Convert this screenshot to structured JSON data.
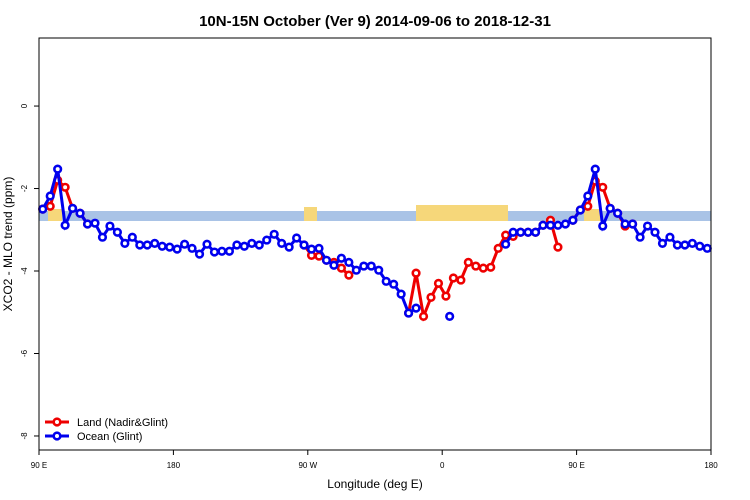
{
  "chart_data": {
    "type": "line",
    "title": "10N-15N October (Ver 9)   2014-09-06 to 2018-12-31",
    "x_label": "Longitude (deg E)",
    "y_label": "XCO2 - MLO trend (ppm)",
    "xlim": [
      90,
      540
    ],
    "ylim": [
      -8.34,
      1.65
    ],
    "xticks": [
      {
        "value": 90,
        "label": "90 E"
      },
      {
        "value": 180,
        "label": "180"
      },
      {
        "value": 270,
        "label": "90 W"
      },
      {
        "value": 360,
        "label": "0"
      },
      {
        "value": 450,
        "label": "90 E"
      },
      {
        "value": 540,
        "label": "180"
      }
    ],
    "yticks": [
      0,
      -2,
      -4,
      -6,
      -8
    ],
    "legend": "bottom-left",
    "series": [
      {
        "name": "Land (Nadir&Glint)",
        "color": "#ee0000",
        "x": [
          92.5,
          97.5,
          102.5,
          107.5,
          112.5,
          117.5,
          122.5,
          125,
          267.5,
          272.5,
          277.5,
          282.5,
          287.5,
          292.5,
          297.5,
          300,
          337.5,
          342.5,
          347.5,
          352.5,
          357.5,
          362.5,
          367.5,
          372.5,
          377.5,
          382.5,
          387.5,
          392.5,
          397.5,
          402.5,
          407.5,
          412.5,
          417.5,
          422.5,
          427.5,
          432.5,
          437.5,
          440,
          447.5,
          452.5,
          457.5,
          462.5,
          467.5,
          472.5,
          477.5,
          482.5,
          487.5
        ],
        "values": [
          -2.5,
          -2.43,
          -1.8,
          -1.97,
          -2.48,
          -2.6,
          -2.86,
          null,
          -3.37,
          -3.62,
          -3.64,
          -3.74,
          -3.79,
          -3.93,
          -4.1,
          null,
          -5.02,
          -4.05,
          -5.1,
          -4.64,
          -4.3,
          -4.61,
          -4.17,
          -4.22,
          -3.79,
          -3.88,
          -3.93,
          -3.91,
          -3.45,
          -3.13,
          -3.16,
          -3.06,
          -3.06,
          -3.06,
          -2.89,
          -2.77,
          -3.42,
          null,
          -2.77,
          -2.52,
          -2.43,
          -1.82,
          -1.97,
          -2.48,
          -2.6,
          -2.91,
          -2.86
        ]
      },
      {
        "name": "Ocean (Glint)",
        "color": "#0000ee",
        "x": [
          92.5,
          97.5,
          102.5,
          107.5,
          112.5,
          117.5,
          122.5,
          127.5,
          132.5,
          137.5,
          142.5,
          147.5,
          152.5,
          157.5,
          162.5,
          167.5,
          172.5,
          177.5,
          182.5,
          187.5,
          192.5,
          197.5,
          202.5,
          207.5,
          212.5,
          217.5,
          222.5,
          227.5,
          232.5,
          237.5,
          242.5,
          247.5,
          252.5,
          257.5,
          262.5,
          267.5,
          272.5,
          277.5,
          282.5,
          287.5,
          292.5,
          297.5,
          302.5,
          307.5,
          312.5,
          317.5,
          322.5,
          327.5,
          332.5,
          337.5,
          342.5,
          352.5,
          365,
          385,
          402.5,
          407.5,
          412.5,
          417.5,
          422.5,
          427.5,
          432.5,
          437.5,
          442.5,
          447.5,
          452.5,
          457.5,
          462.5,
          467.5,
          472.5,
          477.5,
          482.5,
          487.5,
          492.5,
          497.5,
          502.5,
          507.5,
          512.5,
          517.5,
          522.5,
          527.5,
          532.5,
          537.5
        ],
        "values": [
          -2.5,
          -2.18,
          -1.53,
          -2.89,
          -2.48,
          -2.6,
          -2.86,
          -2.84,
          -3.18,
          -2.91,
          -3.06,
          -3.33,
          -3.18,
          -3.37,
          -3.37,
          -3.33,
          -3.4,
          -3.42,
          -3.47,
          -3.35,
          -3.45,
          -3.59,
          -3.35,
          -3.54,
          -3.52,
          -3.52,
          -3.37,
          -3.4,
          -3.33,
          -3.37,
          -3.25,
          -3.11,
          -3.33,
          -3.42,
          -3.2,
          -3.37,
          -3.47,
          -3.45,
          -3.74,
          -3.86,
          -3.69,
          -3.79,
          -3.98,
          -3.88,
          -3.88,
          -3.98,
          -4.25,
          -4.32,
          -4.56,
          -5.02,
          -4.9,
          null,
          -5.1,
          null,
          -3.35,
          -3.06,
          -3.06,
          -3.06,
          -3.06,
          -2.89,
          -2.89,
          -2.89,
          -2.86,
          -2.77,
          -2.52,
          -2.18,
          -1.53,
          -2.91,
          -2.48,
          -2.6,
          -2.86,
          -2.86,
          -3.18,
          -2.91,
          -3.06,
          -3.33,
          -3.18,
          -3.37,
          -3.37,
          -3.33,
          -3.4,
          -3.45
        ]
      }
    ]
  }
}
